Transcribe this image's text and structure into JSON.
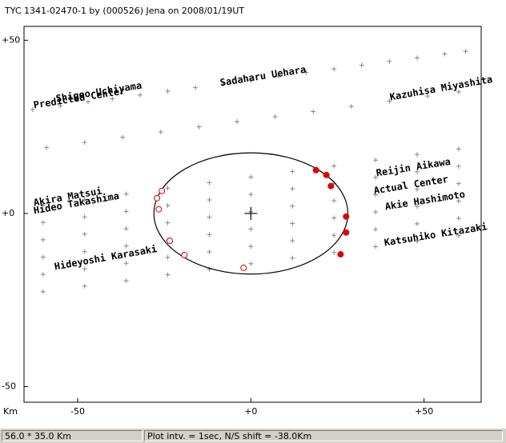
{
  "chart_data": {
    "type": "scatter",
    "title": "TYC 1341-02470-1 by (000526) Jena on 2008/01/19UT",
    "x_unit": "Km",
    "xlim": [
      -65.5,
      66.5
    ],
    "ylim": [
      -54.5,
      54
    ],
    "xticks": [
      {
        "value": -50,
        "label": "-50"
      },
      {
        "value": 0,
        "label": "+0"
      },
      {
        "value": 50,
        "label": "+50"
      }
    ],
    "yticks": [
      {
        "value": 50,
        "label": "+50"
      },
      {
        "value": 0,
        "label": "+0"
      },
      {
        "value": -50,
        "label": "-50"
      }
    ],
    "center": {
      "x": 0,
      "y": 0
    },
    "ellipse": {
      "cx": 0,
      "cy": 0,
      "a": 28,
      "b": 17.5
    },
    "tracks": [
      {
        "x": [
          -63,
          -55,
          -47,
          -40,
          -32,
          -24,
          -16,
          -8,
          0,
          8,
          16,
          24,
          32,
          40,
          48,
          56,
          62
        ],
        "y": [
          30.0,
          31.1,
          32.2,
          33.1,
          34.2,
          35.3,
          36.3,
          37.4,
          38.5,
          39.6,
          40.7,
          41.7,
          42.8,
          43.9,
          44.9,
          46.0,
          46.8
        ]
      },
      {
        "x": [
          -59,
          -48,
          -37,
          -26,
          -15,
          -4,
          7,
          18,
          29,
          40,
          51,
          60
        ],
        "y": [
          19.0,
          20.5,
          22.0,
          23.5,
          25.0,
          26.5,
          27.9,
          29.4,
          30.9,
          32.4,
          33.9,
          35.1
        ]
      },
      {
        "x": [
          -60,
          -48,
          -36,
          -24,
          -12,
          0,
          12,
          24,
          36,
          48,
          60
        ],
        "y": [
          2.4,
          4.0,
          5.6,
          7.3,
          8.9,
          10.5,
          12.1,
          13.7,
          15.4,
          17.0,
          18.6
        ]
      },
      {
        "x": [
          -60,
          -48,
          -36,
          -24,
          -12,
          0,
          12,
          24,
          36,
          48,
          60
        ],
        "y": [
          -2.6,
          -1.0,
          0.6,
          2.3,
          3.9,
          5.5,
          7.1,
          8.7,
          10.4,
          12.0,
          13.6
        ]
      },
      {
        "x": [
          -60,
          -48,
          -36,
          -24,
          -12,
          0,
          12,
          24,
          36,
          48,
          60
        ],
        "y": [
          -7.6,
          -6.0,
          -4.4,
          -2.7,
          -1.1,
          0.5,
          2.1,
          3.7,
          5.4,
          7.0,
          8.6
        ]
      },
      {
        "x": [
          -60,
          -48,
          -36,
          -24,
          -12,
          0,
          12,
          24,
          36,
          48,
          60
        ],
        "y": [
          -12.6,
          -11.0,
          -9.4,
          -7.7,
          -6.1,
          -4.5,
          -2.9,
          -1.3,
          0.4,
          2.0,
          3.6
        ]
      },
      {
        "x": [
          -60,
          -48,
          -36,
          -24,
          -12,
          0,
          12,
          24,
          36,
          48,
          60
        ],
        "y": [
          -17.6,
          -16.0,
          -14.4,
          -12.7,
          -11.1,
          -9.5,
          -7.9,
          -6.3,
          -4.6,
          -3.0,
          -1.4
        ]
      },
      {
        "x": [
          -60,
          -48,
          -36,
          -24,
          -12,
          0,
          12,
          24,
          36,
          48,
          60
        ],
        "y": [
          -22.6,
          -21.0,
          -19.4,
          -17.7,
          -16.1,
          -14.5,
          -12.9,
          -11.3,
          -9.6,
          -8.0,
          -6.4
        ]
      }
    ],
    "disappear": {
      "color": "#e00000",
      "x": [
        -25.7,
        -27.1,
        -26.6,
        -23.4,
        -19.2,
        -2.1
      ],
      "y": [
        6.5,
        4.4,
        1.2,
        -7.9,
        -12.0,
        -15.7
      ]
    },
    "reappear": {
      "color": "#e00000",
      "x": [
        18.8,
        21.8,
        23.1,
        27.5,
        27.5,
        25.9
      ],
      "y": [
        12.5,
        11.1,
        7.9,
        -0.9,
        -5.5,
        -11.8
      ]
    },
    "observers": [
      "Shigeo Uchiyama",
      "Predicted Center",
      "Sadaharu Uehara",
      "Kazuhisa Miyashita",
      "Reijin Aikawa",
      "Actual Center",
      "Akie Hashimoto",
      "Katsuhiko Kitazaki",
      "Akira Matsui",
      "Hideo Takashima",
      "Hideyoshi Karasaki"
    ],
    "status": [
      "56.0 * 35.0 Km",
      "Plot intv. = 1sec, N/S shift = -38.0Km"
    ]
  }
}
